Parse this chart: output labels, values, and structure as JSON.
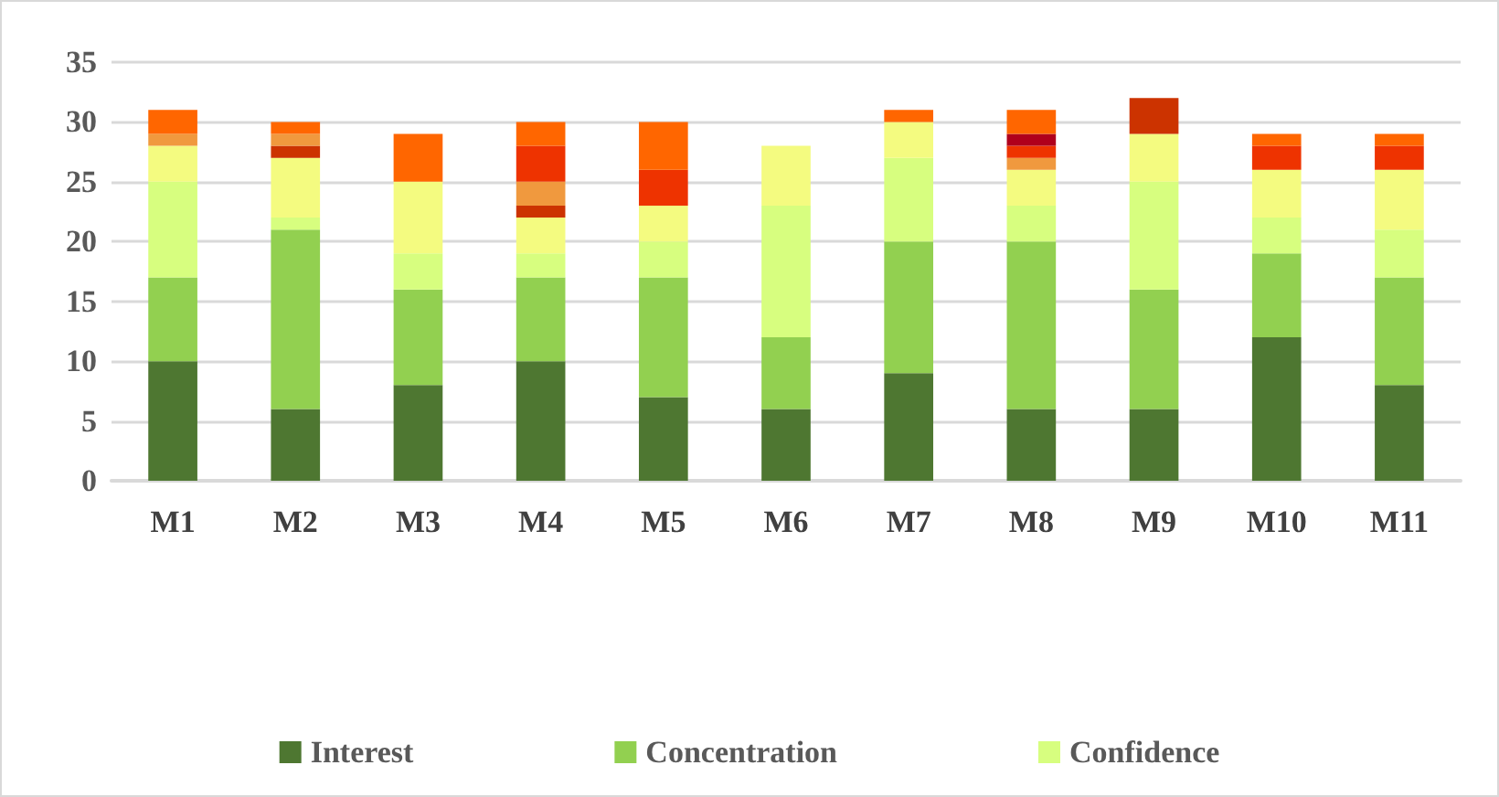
{
  "chart_data": {
    "type": "bar",
    "stacked": true,
    "categories": [
      "M1",
      "M2",
      "M3",
      "M4",
      "M5",
      "M6",
      "M7",
      "M8",
      "M9",
      "M10",
      "M11"
    ],
    "series": [
      {
        "name": "Interest",
        "color": "#4e7731",
        "values": [
          10,
          6,
          8,
          10,
          7,
          6,
          9,
          6,
          6,
          12,
          8
        ]
      },
      {
        "name": "Concentration",
        "color": "#92d050",
        "values": [
          7,
          15,
          8,
          7,
          10,
          6,
          11,
          14,
          10,
          7,
          9
        ]
      },
      {
        "name": "Confidence",
        "color": "#d7fe7f",
        "values": [
          8,
          1,
          3,
          2,
          3,
          11,
          7,
          3,
          9,
          3,
          4
        ]
      },
      {
        "color": "#f4fb80",
        "values": [
          3,
          5,
          6,
          3,
          3,
          5,
          3,
          3,
          4,
          4,
          5
        ]
      },
      {
        "color": "#cc3300",
        "values": [
          null,
          1,
          null,
          1,
          null,
          null,
          null,
          null,
          3,
          null,
          null
        ]
      },
      {
        "color": "#f0993e",
        "values": [
          1,
          1,
          null,
          2,
          null,
          null,
          null,
          1,
          null,
          null,
          null
        ]
      },
      {
        "color": "#ee3300",
        "values": [
          null,
          null,
          null,
          3,
          3,
          null,
          null,
          1,
          null,
          2,
          2
        ]
      },
      {
        "color": "#b0001c",
        "values": [
          null,
          null,
          null,
          null,
          null,
          null,
          null,
          1,
          null,
          null,
          null
        ]
      },
      {
        "color": "#ff6600",
        "values": [
          2,
          1,
          4,
          2,
          4,
          null,
          1,
          2,
          null,
          1,
          1
        ]
      }
    ],
    "ylim": [
      0,
      35
    ],
    "yticks": [
      0,
      5,
      10,
      15,
      20,
      25,
      30,
      35
    ],
    "grid": "y",
    "legend": "bottom"
  }
}
